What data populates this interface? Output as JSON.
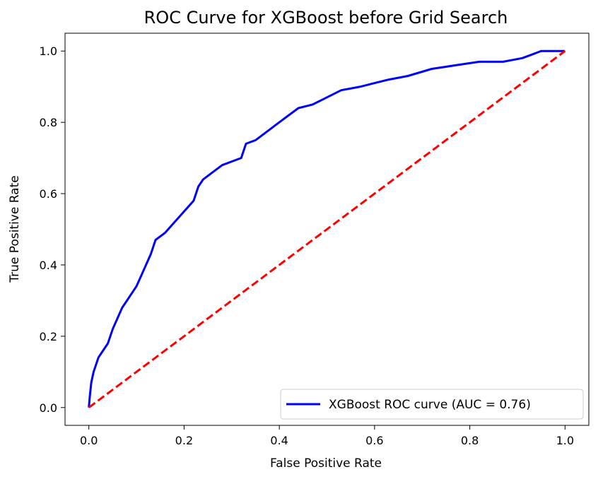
{
  "chart_data": {
    "type": "line",
    "title": "ROC Curve for XGBoost before Grid Search",
    "xlabel": "False Positive Rate",
    "ylabel": "True Positive Rate",
    "xlim": [
      -0.05,
      1.05
    ],
    "ylim": [
      -0.05,
      1.05
    ],
    "xticks": [
      0.0,
      0.2,
      0.4,
      0.6,
      0.8,
      1.0
    ],
    "yticks": [
      0.0,
      0.2,
      0.4,
      0.6,
      0.8,
      1.0
    ],
    "xtick_labels": [
      "0.0",
      "0.2",
      "0.4",
      "0.6",
      "0.8",
      "1.0"
    ],
    "ytick_labels": [
      "0.0",
      "0.2",
      "0.4",
      "0.6",
      "0.8",
      "1.0"
    ],
    "grid": false,
    "legend_placement": "lower-right",
    "series": [
      {
        "name": "XGBoost ROC curve (AUC = 0.76)",
        "color": "#0000ff",
        "style": "solid",
        "points": [
          [
            0.0,
            0.0
          ],
          [
            0.002,
            0.03
          ],
          [
            0.005,
            0.07
          ],
          [
            0.01,
            0.1
          ],
          [
            0.015,
            0.12
          ],
          [
            0.02,
            0.14
          ],
          [
            0.03,
            0.16
          ],
          [
            0.04,
            0.18
          ],
          [
            0.05,
            0.22
          ],
          [
            0.06,
            0.25
          ],
          [
            0.07,
            0.28
          ],
          [
            0.08,
            0.3
          ],
          [
            0.09,
            0.32
          ],
          [
            0.1,
            0.34
          ],
          [
            0.11,
            0.37
          ],
          [
            0.12,
            0.4
          ],
          [
            0.13,
            0.43
          ],
          [
            0.14,
            0.47
          ],
          [
            0.16,
            0.49
          ],
          [
            0.18,
            0.52
          ],
          [
            0.2,
            0.55
          ],
          [
            0.22,
            0.58
          ],
          [
            0.23,
            0.62
          ],
          [
            0.24,
            0.64
          ],
          [
            0.26,
            0.66
          ],
          [
            0.28,
            0.68
          ],
          [
            0.3,
            0.69
          ],
          [
            0.32,
            0.7
          ],
          [
            0.33,
            0.74
          ],
          [
            0.35,
            0.75
          ],
          [
            0.37,
            0.77
          ],
          [
            0.4,
            0.8
          ],
          [
            0.42,
            0.82
          ],
          [
            0.44,
            0.84
          ],
          [
            0.47,
            0.85
          ],
          [
            0.5,
            0.87
          ],
          [
            0.53,
            0.89
          ],
          [
            0.57,
            0.9
          ],
          [
            0.6,
            0.91
          ],
          [
            0.63,
            0.92
          ],
          [
            0.67,
            0.93
          ],
          [
            0.72,
            0.95
          ],
          [
            0.77,
            0.96
          ],
          [
            0.82,
            0.97
          ],
          [
            0.87,
            0.97
          ],
          [
            0.91,
            0.98
          ],
          [
            0.93,
            0.99
          ],
          [
            0.95,
            1.0
          ],
          [
            1.0,
            1.0
          ]
        ]
      },
      {
        "name": "",
        "color": "#ff0000",
        "style": "dashed",
        "points": [
          [
            0.0,
            0.0
          ],
          [
            1.0,
            1.0
          ]
        ]
      }
    ]
  }
}
